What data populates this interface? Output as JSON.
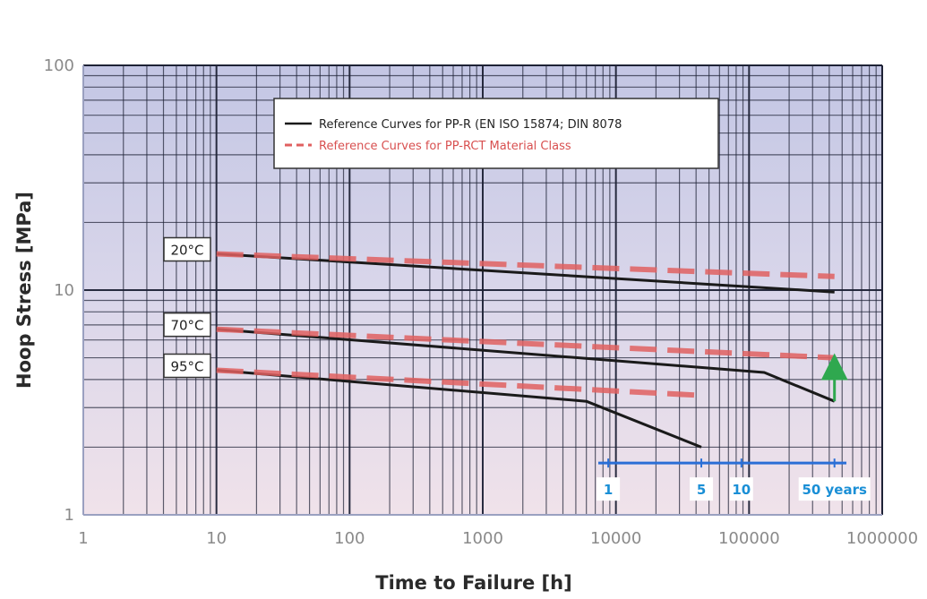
{
  "chart_data": {
    "type": "line",
    "title": "",
    "xlabel": "Time to Failure [h]",
    "ylabel": "Hoop Stress [MPa]",
    "x_scale": "log",
    "y_scale": "log",
    "xlim": [
      1,
      1000000
    ],
    "ylim": [
      1,
      100
    ],
    "grid": true,
    "legend_position": "top-center",
    "x_ticks": [
      "1",
      "10",
      "100",
      "1000",
      "10000",
      "100000",
      "1000000"
    ],
    "y_ticks": [
      "1",
      "10",
      "100"
    ],
    "legend": [
      {
        "label": "Reference Curves for PP-R (EN ISO 15874; DIN 8078",
        "color": "#1a1a1a",
        "style": "solid"
      },
      {
        "label": "Reference Curves for PP-RCT Material Class",
        "color": "#e06060",
        "style": "dashed"
      }
    ],
    "temperature_labels": [
      {
        "label": "20°C",
        "y": 14.5
      },
      {
        "label": "70°C",
        "y": 6.7
      },
      {
        "label": "95°C",
        "y": 4.4
      }
    ],
    "series": [
      {
        "name": "Reference Curves for PP-R (EN ISO 15874; DIN 8078",
        "temperature": "20°C",
        "color": "#1a1a1a",
        "style": "solid",
        "x": [
          10,
          438000
        ],
        "y": [
          14.5,
          9.8
        ]
      },
      {
        "name": "Reference Curves for PP-R (EN ISO 15874; DIN 8078",
        "temperature": "70°C",
        "color": "#1a1a1a",
        "style": "solid",
        "x": [
          10,
          130000,
          438000
        ],
        "y": [
          6.7,
          4.3,
          3.2
        ]
      },
      {
        "name": "Reference Curves for PP-R (EN ISO 15874; DIN 8078",
        "temperature": "95°C",
        "color": "#1a1a1a",
        "style": "solid",
        "x": [
          10,
          6000,
          43800
        ],
        "y": [
          4.4,
          3.2,
          2.0
        ]
      },
      {
        "name": "Reference Curves for PP-RCT Material Class",
        "temperature": "20°C",
        "color": "#e06060",
        "style": "dashed",
        "x": [
          10,
          438000
        ],
        "y": [
          14.5,
          11.5
        ]
      },
      {
        "name": "Reference Curves for PP-RCT Material Class",
        "temperature": "70°C",
        "color": "#e06060",
        "style": "dashed",
        "x": [
          10,
          438000
        ],
        "y": [
          6.7,
          5.0
        ]
      },
      {
        "name": "Reference Curves for PP-RCT Material Class",
        "temperature": "95°C",
        "color": "#e06060",
        "style": "dashed",
        "x": [
          10,
          43800
        ],
        "y": [
          4.4,
          3.4
        ]
      }
    ],
    "arrow": {
      "x": 438000,
      "y_from": 3.2,
      "y_to": 5.0,
      "color": "#2fa84f"
    },
    "years_scale": {
      "color": "#2a6fd6",
      "text_color": "#1a8fd6",
      "y": 1.7,
      "x_start": 8760,
      "x_end": 438000,
      "marks": [
        {
          "label": "1",
          "x": 8760
        },
        {
          "label": "5",
          "x": 43800
        },
        {
          "label": "10",
          "x": 87600
        },
        {
          "label": "50 years",
          "x": 438000
        }
      ]
    },
    "colors": {
      "background_top": "#c3c6e4",
      "background_bottom": "#f0e2ea",
      "grid": "#1e2236",
      "axis_tick_labels": "#8a8a8a"
    }
  }
}
